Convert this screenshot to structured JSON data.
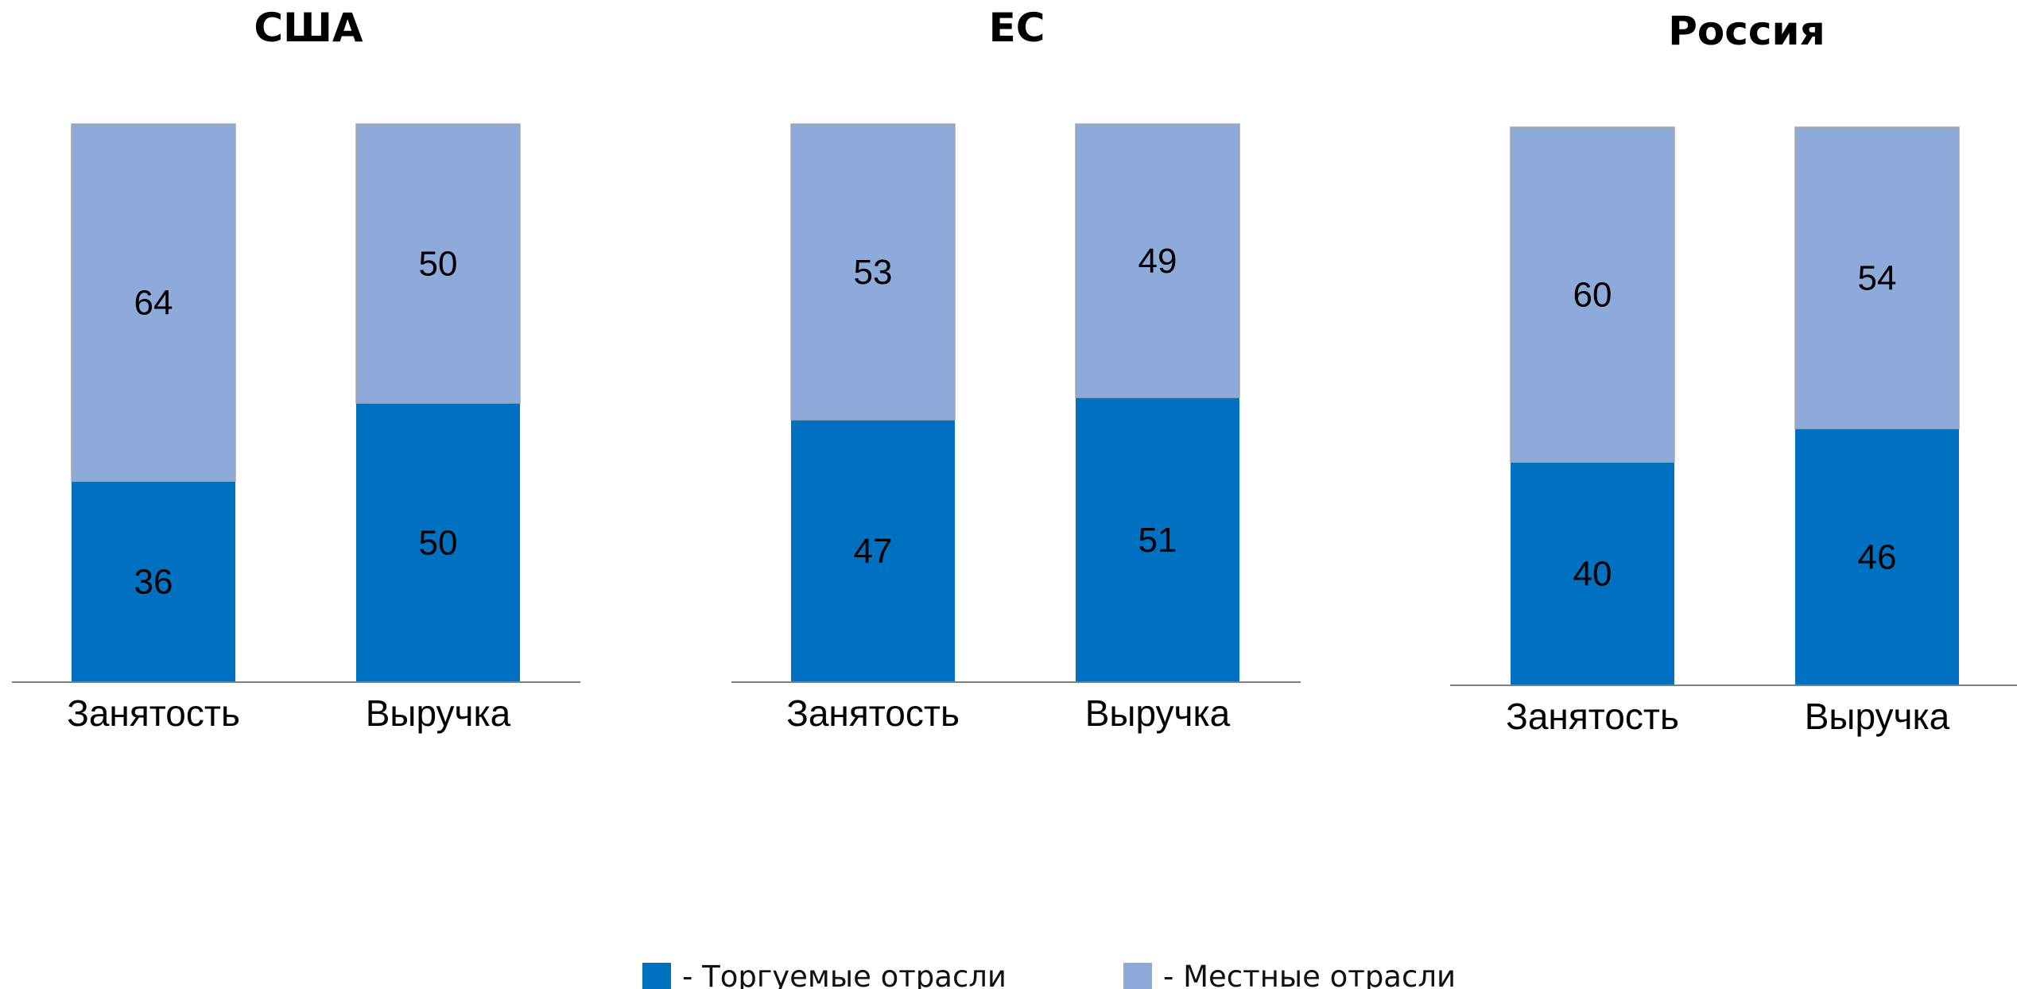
{
  "colors": {
    "tradable": "#0070C0",
    "local": "#8EAADB",
    "axis": "#7F7F7F"
  },
  "chart_data": [
    {
      "type": "bar",
      "stacked": true,
      "title": "США",
      "categories": [
        "Занятость",
        "Выручка"
      ],
      "series": [
        {
          "name": "- Торгуемые отрасли",
          "values": [
            36,
            50
          ]
        },
        {
          "name": "- Местные отрасли",
          "values": [
            64,
            50
          ]
        }
      ],
      "ylim": [
        0,
        100
      ],
      "grid": false
    },
    {
      "type": "bar",
      "stacked": true,
      "title": "ЕС",
      "categories": [
        "Занятость",
        "Выручка"
      ],
      "series": [
        {
          "name": "- Торгуемые отрасли",
          "values": [
            47,
            51
          ]
        },
        {
          "name": "- Местные отрасли",
          "values": [
            53,
            49
          ]
        }
      ],
      "ylim": [
        0,
        100
      ],
      "grid": false
    },
    {
      "type": "bar",
      "stacked": true,
      "title": "Россия",
      "categories": [
        "Занятость",
        "Выручка"
      ],
      "series": [
        {
          "name": "- Торгуемые отрасли",
          "values": [
            40,
            46
          ]
        },
        {
          "name": "- Местные отрасли",
          "values": [
            60,
            54
          ]
        }
      ],
      "ylim": [
        0,
        100
      ],
      "grid": false
    }
  ],
  "legend": {
    "placement": "bottom-center",
    "items": [
      {
        "label": "- Торгуемые отрасли",
        "color": "#0070C0"
      },
      {
        "label": "- Местные отрасли",
        "color": "#8EAADB"
      }
    ]
  }
}
